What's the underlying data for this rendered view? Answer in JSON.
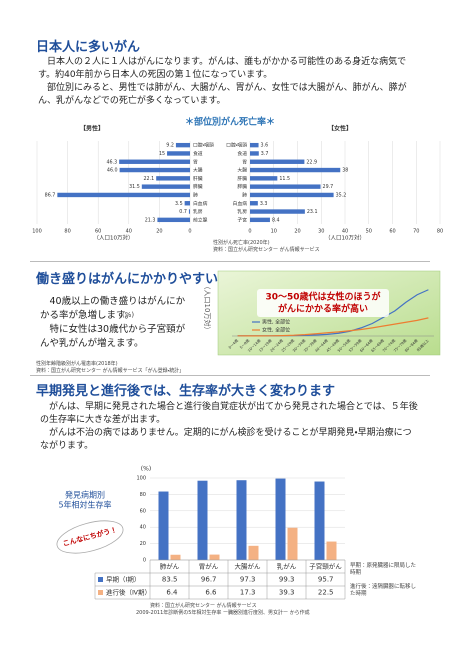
{
  "section1": {
    "title": "日本人に多いがん",
    "paragraphs": [
      "日本人の２人に１人はがんになります。がんは、誰もがかかる可能性のある身近な病気です。約40年前から日本人の死因の第１位になっています。",
      "部位別にみると、男性では肺がん、大腸がん、胃がん、女性では大腸がん、肺がん、膵がん、乳がんなどでの死亡が多くなっています。"
    ],
    "chart_title": "＊部位別がん死亡率＊",
    "notes": [
      "性別がん死亡率(2020年)",
      "資料：国立がん研究センター がん情報サービス"
    ]
  },
  "section2": {
    "title": "働き盛りはがんにかかりやすい",
    "paragraphs": [
      "40歳以上の働き盛りはがんにかかる率が急増します。",
      "特に女性は30歳代から子宮頸がんや乳がんが増えます。"
    ],
    "stray_label": "(%)",
    "notes": [
      "性別年齢階級別がん罹患率(2018年)",
      "資料：国立がん研究センター がん情報サービス「がん登録・統計」"
    ]
  },
  "section3": {
    "title": "早期発見と進行後では、生存率が大きく変わります",
    "paragraphs": [
      "がんは、早期に発見された場合と進行後自覚症状が出てから発見された場合とでは、５年後の生存率に大きな差が出ます。",
      "がんは不治の病ではありません。定期的にがん検診を受けることが早期発見・早期治療につながります。"
    ],
    "side_label": [
      "発見病期別",
      "5年相対生存率"
    ],
    "bubble": "こんなにちがう！",
    "definitions": [
      "早期：原発臓器に限局した時期",
      "進行後：遠隔臓器に転移した時期"
    ],
    "notes": [
      "資料：国立がん研究センター がん情報サービス",
      "2009-2011年診断例の5年相対生存率 ー臓器別進行度別、男女計ー から作成"
    ]
  },
  "chart_data": [
    {
      "type": "bar",
      "orientation": "horizontal",
      "label": "【男性】",
      "categories": [
        "口腔・咽頭",
        "食道",
        "胃",
        "大腸",
        "肝臓",
        "膵臓",
        "肺",
        "白血病",
        "乳房",
        "前立腺"
      ],
      "values": [
        9.2,
        15,
        46.3,
        46.0,
        22.1,
        31.5,
        86.7,
        3.5,
        0.7,
        21.3
      ],
      "value_labels": [
        "9.2",
        "15",
        "46.3",
        "46.0",
        "22.1",
        "31.5",
        "86.7",
        "3.5",
        "0.7",
        "21.3"
      ],
      "color": "#4472c4",
      "xlim": [
        100,
        0
      ],
      "xticks": [
        100,
        80,
        60,
        40,
        20,
        0
      ],
      "xlabel": "（人口10万対）",
      "grid": true
    },
    {
      "type": "bar",
      "orientation": "horizontal",
      "label": "【女性】",
      "categories": [
        "口腔・咽頭",
        "食道",
        "胃",
        "大腸",
        "肝臓",
        "膵臓",
        "肺",
        "白血病",
        "乳房",
        "子宮"
      ],
      "values": [
        3.6,
        3.7,
        22.9,
        38,
        11.5,
        29.7,
        35.2,
        3.3,
        23.1,
        8.4
      ],
      "color": "#4472c4",
      "xlim": [
        0,
        80
      ],
      "xticks": [
        0,
        10,
        20,
        30,
        40,
        50,
        60,
        70,
        80
      ],
      "xlabel": "（人口10万対）",
      "grid": true
    },
    {
      "type": "line",
      "ylabel": "（人口10万対）",
      "annotation": [
        "30～50歳代は女性のほうが",
        "がんにかかる率が高い"
      ],
      "categories": [
        "0～4歳",
        "5～9歳",
        "10～14歳",
        "15～19歳",
        "20～24歳",
        "25～29歳",
        "30～34歳",
        "35～39歳",
        "40～44歳",
        "45～49歳",
        "50～54歳",
        "55～59歳",
        "60～64歳",
        "65～69歳",
        "70～74歳",
        "75～79歳",
        "80～84歳",
        "85歳以上"
      ],
      "series": [
        {
          "name": "男性, 全部位",
          "color": "#4472c4",
          "values": [
            15,
            10,
            12,
            15,
            25,
            35,
            50,
            80,
            130,
            220,
            380,
            650,
            1000,
            1500,
            2000,
            2700,
            3300,
            3700
          ]
        },
        {
          "name": "女性, 全部位",
          "color": "#ed7d31",
          "values": [
            15,
            10,
            10,
            15,
            30,
            60,
            110,
            180,
            260,
            330,
            420,
            520,
            650,
            800,
            950,
            1100,
            1250,
            1450
          ]
        }
      ],
      "ylim": [
        0,
        4000
      ]
    },
    {
      "type": "bar",
      "orientation": "vertical",
      "ylabel": "(%)",
      "categories": [
        "肺がん",
        "胃がん",
        "大腸がん",
        "乳がん",
        "子宮頸がん"
      ],
      "series": [
        {
          "name": "早期（Ⅰ期）",
          "color": "#4472c4",
          "values": [
            83.5,
            96.7,
            97.3,
            99.3,
            95.7
          ]
        },
        {
          "name": "進行後（Ⅳ期）",
          "color": "#f4b183",
          "values": [
            6.4,
            6.6,
            17.3,
            39.3,
            22.5
          ]
        }
      ],
      "ylim": [
        0,
        100
      ],
      "yticks": [
        0,
        20,
        40,
        60,
        80,
        100
      ],
      "grid": true,
      "data_table": true
    }
  ]
}
